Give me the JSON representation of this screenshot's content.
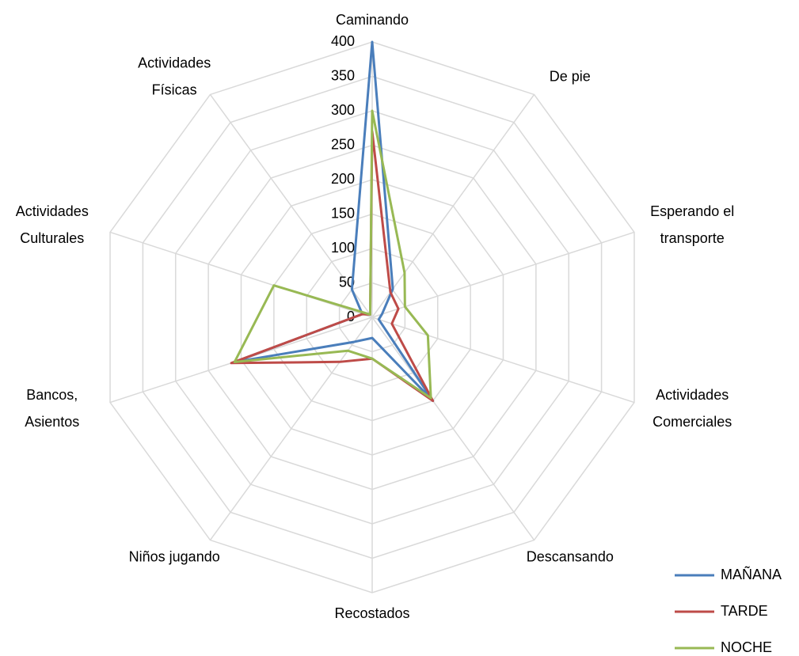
{
  "chart_data": {
    "type": "radar",
    "categories": [
      "Caminando",
      "De pie",
      "Esperando el\ntransporte",
      "Actividades\nComerciales",
      "Descansando",
      "Recostados",
      "Niños jugando",
      "Bancos,\nAsientos",
      "Actividades\nCulturales",
      "Actividades\nFísicas"
    ],
    "series": [
      {
        "name": "MAÑANA",
        "color": "#4a7ebb",
        "values": [
          400,
          51,
          15,
          10,
          150,
          30,
          44,
          210,
          15,
          50
        ]
      },
      {
        "name": "TARDE",
        "color": "#be4b48",
        "values": [
          270,
          45,
          40,
          30,
          150,
          60,
          80,
          215,
          15,
          5
        ]
      },
      {
        "name": "NOCHE",
        "color": "#98b954",
        "values": [
          300,
          80,
          50,
          85,
          145,
          60,
          60,
          210,
          150,
          5
        ]
      }
    ],
    "ylim": [
      0,
      400
    ],
    "yticks": [
      0,
      50,
      100,
      150,
      200,
      250,
      300,
      350,
      400
    ],
    "grid": true,
    "legend": "bottom-right"
  }
}
